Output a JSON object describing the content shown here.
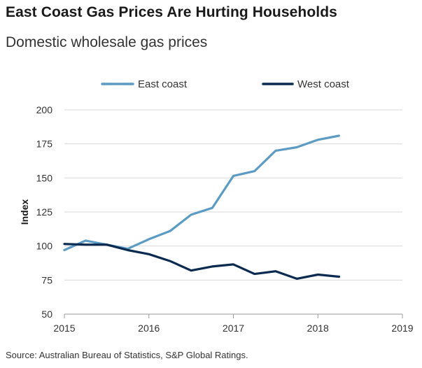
{
  "chart_data": {
    "type": "line",
    "title": "East Coast Gas Prices Are Hurting Households",
    "subtitle": "Domestic wholesale gas prices",
    "xlabel": "",
    "ylabel": "Index",
    "xlim": [
      2015,
      2019
    ],
    "ylim": [
      50,
      200
    ],
    "xticks": [
      2015,
      2016,
      2017,
      2018,
      2019
    ],
    "yticks": [
      50,
      75,
      100,
      125,
      150,
      175,
      200
    ],
    "grid": "horizontal",
    "legend_position": "top-center",
    "series": [
      {
        "name": "East coast",
        "color": "#5b9bc4",
        "x": [
          2015.0,
          2015.25,
          2015.5,
          2015.75,
          2016.0,
          2016.25,
          2016.5,
          2016.75,
          2017.0,
          2017.25,
          2017.5,
          2017.75,
          2018.0,
          2018.25
        ],
        "y": [
          97,
          104,
          101,
          98,
          105,
          111,
          123,
          128,
          151.5,
          155,
          170,
          172.5,
          178,
          181
        ]
      },
      {
        "name": "West coast",
        "color": "#0b2a4f",
        "x": [
          2015.0,
          2015.25,
          2015.5,
          2015.75,
          2016.0,
          2016.25,
          2016.5,
          2016.75,
          2017.0,
          2017.25,
          2017.5,
          2017.75,
          2018.0,
          2018.25
        ],
        "y": [
          101.5,
          101,
          101,
          97,
          94,
          89,
          82,
          85,
          86.5,
          79.5,
          81.5,
          76,
          79,
          77.5
        ]
      }
    ]
  },
  "source": "Source: Australian Bureau of Statistics, S&P Global Ratings."
}
